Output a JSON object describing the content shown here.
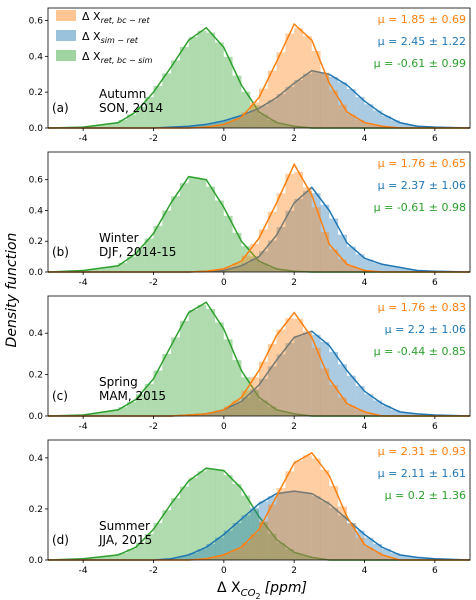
{
  "colors": {
    "sim_ret": "#1f77b4",
    "bc_ret": "#ff7f0e",
    "bc_sim": "#2ca02c"
  },
  "legend": {
    "items": [
      {
        "key": "bc_ret",
        "base": "Δ X",
        "sub": "ret, bc − ret"
      },
      {
        "key": "sim_ret",
        "base": "Δ X",
        "sub": "sim − ret"
      },
      {
        "key": "bc_sim",
        "base": "Δ X",
        "sub": "ret, bc − sim"
      }
    ]
  },
  "axes": {
    "ylabel": "Density function",
    "xlabel_base": "Δ X",
    "xlabel_sub": "CO",
    "xlabel_subsub": "2",
    "xlabel_unit": "[ppm]",
    "x_min": -5,
    "x_max": 7,
    "xticks": [
      -4,
      -2,
      0,
      2,
      4,
      6
    ]
  },
  "chart_data": [
    {
      "type": "area",
      "letter": "(a)",
      "season": "Autumn",
      "period": "SON, 2014",
      "ylim": [
        0,
        0.67
      ],
      "yticks": [
        "0.0",
        "0.2",
        "0.4",
        "0.6"
      ],
      "ytick_values": [
        0,
        0.2,
        0.4,
        0.6
      ],
      "x": [
        -5,
        -4,
        -3,
        -2.5,
        -2,
        -1.5,
        -1,
        -0.5,
        0,
        0.5,
        1,
        1.5,
        2,
        2.5,
        3,
        3.5,
        4,
        4.5,
        5,
        5.5,
        6,
        7
      ],
      "series": [
        {
          "key": "bc_ret",
          "y": [
            0,
            0,
            0,
            0,
            0,
            0,
            0,
            0.005,
            0.02,
            0.06,
            0.17,
            0.37,
            0.58,
            0.49,
            0.25,
            0.09,
            0.03,
            0.01,
            0,
            0,
            0,
            0
          ]
        },
        {
          "key": "sim_ret",
          "y": [
            0,
            0,
            0,
            0,
            0,
            0.005,
            0.01,
            0.02,
            0.04,
            0.07,
            0.11,
            0.17,
            0.25,
            0.32,
            0.3,
            0.24,
            0.15,
            0.08,
            0.03,
            0.01,
            0.005,
            0
          ]
        },
        {
          "key": "bc_sim",
          "y": [
            0,
            0.005,
            0.03,
            0.09,
            0.2,
            0.34,
            0.49,
            0.56,
            0.45,
            0.24,
            0.09,
            0.03,
            0.01,
            0,
            0,
            0,
            0,
            0,
            0,
            0,
            0,
            0
          ]
        }
      ],
      "stats": [
        {
          "key": "bc_ret",
          "text": "μ = 1.85 ± 0.69"
        },
        {
          "key": "sim_ret",
          "text": "μ = 2.45 ± 1.22"
        },
        {
          "key": "bc_sim",
          "text": "μ = -0.61 ± 0.99"
        }
      ]
    },
    {
      "type": "area",
      "letter": "(b)",
      "season": "Winter",
      "period": "DJF, 2014-15",
      "ylim": [
        0,
        0.78
      ],
      "yticks": [
        "0.0",
        "0.2",
        "0.4",
        "0.6"
      ],
      "ytick_values": [
        0,
        0.2,
        0.4,
        0.6
      ],
      "x": [
        -5,
        -4,
        -3,
        -2.5,
        -2,
        -1.5,
        -1,
        -0.5,
        0,
        0.5,
        1,
        1.5,
        2,
        2.5,
        3,
        3.5,
        4,
        4.5,
        5,
        5.5,
        6,
        7
      ],
      "series": [
        {
          "key": "bc_ret",
          "y": [
            0,
            0,
            0,
            0,
            0,
            0,
            0,
            0.005,
            0.02,
            0.07,
            0.22,
            0.45,
            0.7,
            0.5,
            0.18,
            0.05,
            0.01,
            0,
            0,
            0,
            0,
            0
          ]
        },
        {
          "key": "sim_ret",
          "y": [
            0,
            0,
            0,
            0,
            0,
            0,
            0,
            0.005,
            0.01,
            0.04,
            0.1,
            0.24,
            0.45,
            0.55,
            0.4,
            0.19,
            0.09,
            0.05,
            0.03,
            0.01,
            0.005,
            0
          ]
        },
        {
          "key": "bc_sim",
          "y": [
            0,
            0.01,
            0.04,
            0.12,
            0.25,
            0.45,
            0.62,
            0.6,
            0.42,
            0.2,
            0.07,
            0.02,
            0.005,
            0,
            0,
            0,
            0,
            0,
            0,
            0,
            0,
            0
          ]
        }
      ],
      "stats": [
        {
          "key": "bc_ret",
          "text": "μ = 1.76 ± 0.65"
        },
        {
          "key": "sim_ret",
          "text": "μ = 2.37 ± 1.06"
        },
        {
          "key": "bc_sim",
          "text": "μ = -0.61 ± 0.98"
        }
      ]
    },
    {
      "type": "area",
      "letter": "(c)",
      "season": "Spring",
      "period": "MAM, 2015",
      "ylim": [
        0,
        0.58
      ],
      "yticks": [
        "0.0",
        "0.2",
        "0.4"
      ],
      "ytick_values": [
        0,
        0.2,
        0.4
      ],
      "x": [
        -5,
        -4,
        -3,
        -2.5,
        -2,
        -1.5,
        -1,
        -0.5,
        0,
        0.5,
        1,
        1.5,
        2,
        2.5,
        3,
        3.5,
        4,
        4.5,
        5,
        5.5,
        6,
        7
      ],
      "series": [
        {
          "key": "bc_ret",
          "y": [
            0,
            0,
            0,
            0,
            0,
            0,
            0.005,
            0.01,
            0.03,
            0.09,
            0.22,
            0.39,
            0.5,
            0.38,
            0.18,
            0.06,
            0.02,
            0,
            0,
            0,
            0,
            0
          ]
        },
        {
          "key": "sim_ret",
          "y": [
            0,
            0,
            0,
            0,
            0,
            0,
            0.005,
            0.01,
            0.03,
            0.07,
            0.15,
            0.27,
            0.38,
            0.41,
            0.34,
            0.22,
            0.12,
            0.06,
            0.02,
            0.01,
            0.005,
            0
          ]
        },
        {
          "key": "bc_sim",
          "y": [
            0,
            0.005,
            0.03,
            0.08,
            0.18,
            0.34,
            0.5,
            0.55,
            0.42,
            0.22,
            0.09,
            0.03,
            0.01,
            0,
            0,
            0,
            0,
            0,
            0,
            0,
            0,
            0
          ]
        }
      ],
      "stats": [
        {
          "key": "bc_ret",
          "text": "μ = 1.76 ± 0.83"
        },
        {
          "key": "sim_ret",
          "text": "μ = 2.2 ± 1.06"
        },
        {
          "key": "bc_sim",
          "text": "μ = -0.44 ± 0.85"
        }
      ]
    },
    {
      "type": "area",
      "letter": "(d)",
      "season": "Summer",
      "period": "JJA, 2015",
      "ylim": [
        0,
        0.47
      ],
      "yticks": [
        "0.0",
        "0.2",
        "0.4"
      ],
      "ytick_values": [
        0,
        0.2,
        0.4
      ],
      "x": [
        -5,
        -4,
        -3,
        -2.5,
        -2,
        -1.5,
        -1,
        -0.5,
        0,
        0.5,
        1,
        1.5,
        2,
        2.5,
        3,
        3.5,
        4,
        4.5,
        5,
        5.5,
        6,
        7
      ],
      "series": [
        {
          "key": "bc_ret",
          "y": [
            0,
            0,
            0,
            0,
            0,
            0,
            0,
            0.005,
            0.02,
            0.05,
            0.12,
            0.25,
            0.38,
            0.42,
            0.33,
            0.17,
            0.06,
            0.02,
            0,
            0,
            0,
            0
          ]
        },
        {
          "key": "sim_ret",
          "y": [
            0,
            0,
            0,
            0,
            0,
            0.005,
            0.02,
            0.05,
            0.1,
            0.16,
            0.22,
            0.26,
            0.27,
            0.26,
            0.22,
            0.16,
            0.1,
            0.05,
            0.02,
            0.01,
            0.005,
            0
          ]
        },
        {
          "key": "bc_sim",
          "y": [
            0,
            0.005,
            0.02,
            0.05,
            0.12,
            0.22,
            0.31,
            0.36,
            0.35,
            0.28,
            0.17,
            0.08,
            0.03,
            0.01,
            0,
            0,
            0,
            0,
            0,
            0,
            0,
            0
          ]
        }
      ],
      "stats": [
        {
          "key": "bc_ret",
          "text": "μ = 2.31 ± 0.93"
        },
        {
          "key": "sim_ret",
          "text": "μ = 2.11 ± 1.61"
        },
        {
          "key": "bc_sim",
          "text": "μ = 0.2 ± 1.36"
        }
      ]
    }
  ]
}
